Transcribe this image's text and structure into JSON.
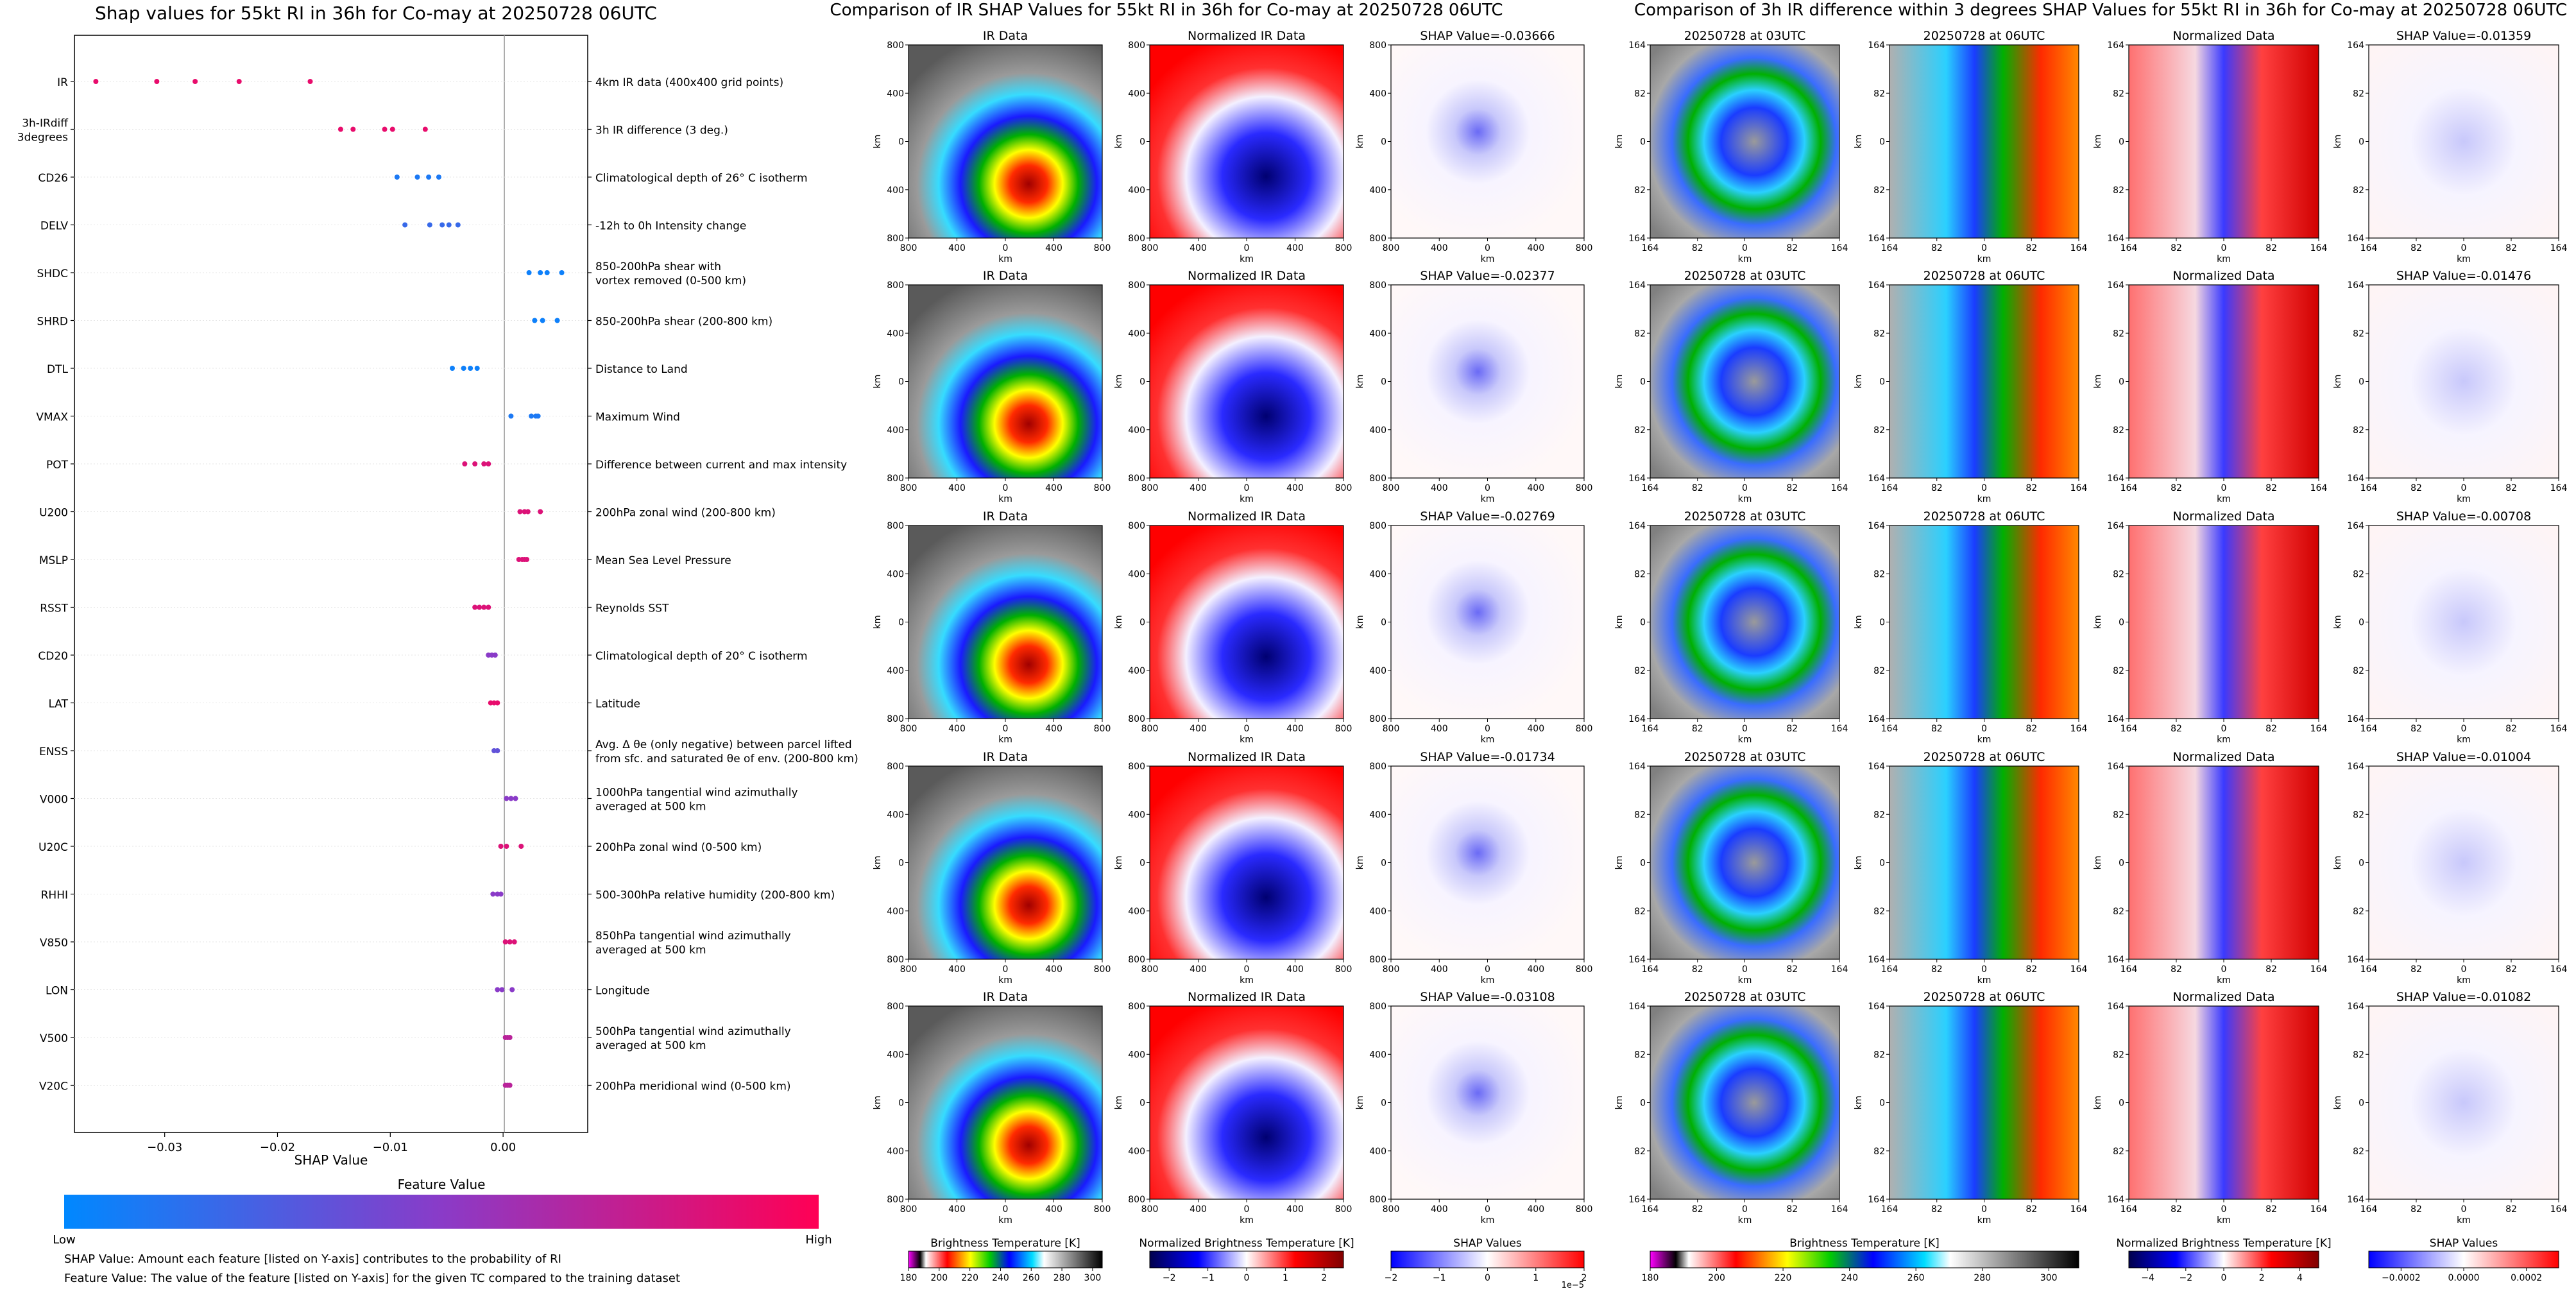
{
  "beeswarm": {
    "title": "Shap values for 55kt RI in 36h for Co-may at 20250728 06UTC",
    "xlabel": "SHAP Value",
    "xticks": [
      -0.03,
      -0.02,
      -0.01,
      0.0
    ],
    "xtick_labels": [
      "−0.03",
      "−0.02",
      "−0.01",
      "0.00"
    ],
    "xlim": [
      -0.038,
      0.0075
    ],
    "colorbar_title": "Feature Value",
    "colorbar_low": "Low",
    "colorbar_high": "High",
    "colorbar_colors": [
      "#0088ff",
      "#8a3bc8",
      "#ff0055"
    ],
    "notes": [
      "SHAP Value: Amount each feature [listed on Y-axis] contributes to the probability of RI",
      "Feature Value: The value of the feature [listed on Y-axis] for the given TC compared to the training dataset"
    ]
  },
  "chart_data": {
    "type": "scatter",
    "title": "Shap values for 55kt RI in 36h for Co-may at 20250728 06UTC",
    "xlabel": "SHAP Value",
    "xlim": [
      -0.038,
      0.0075
    ],
    "features": [
      {
        "label": "IR",
        "desc": "4km IR data (400x400 grid points)",
        "values": [
          -0.0361,
          -0.0307,
          -0.0273,
          -0.0234,
          -0.0171
        ],
        "feature_levels": [
          0.9,
          0.9,
          0.9,
          0.9,
          0.9
        ]
      },
      {
        "label": "3h-IRdiff\n3degrees",
        "desc": "3h IR difference (3 deg.)",
        "values": [
          -0.0144,
          -0.0133,
          -0.0105,
          -0.0098,
          -0.0069
        ],
        "feature_levels": [
          0.9,
          0.9,
          0.9,
          0.9,
          0.9
        ]
      },
      {
        "label": "CD26",
        "desc": "Climatological depth of 26° C isotherm",
        "values": [
          -0.0094,
          -0.0076,
          -0.0066,
          -0.0057
        ],
        "feature_levels": [
          0.1,
          0.1,
          0.1,
          0.1
        ]
      },
      {
        "label": "DELV",
        "desc": "-12h to 0h Intensity change",
        "values": [
          -0.0087,
          -0.0065,
          -0.0054,
          -0.0048,
          -0.004
        ],
        "feature_levels": [
          0.2,
          0.2,
          0.2,
          0.2,
          0.2
        ]
      },
      {
        "label": "SHDC",
        "desc": "850-200hPa shear with\nvortex removed (0-500 km)",
        "values": [
          0.0023,
          0.0033,
          0.0039,
          0.0052
        ],
        "feature_levels": [
          0.05,
          0.05,
          0.05,
          0.05
        ]
      },
      {
        "label": "SHRD",
        "desc": "850-200hPa shear (200-800 km)",
        "values": [
          0.0028,
          0.0035,
          0.0048
        ],
        "feature_levels": [
          0.05,
          0.05,
          0.05
        ]
      },
      {
        "label": "DTL",
        "desc": "Distance to Land",
        "values": [
          -0.0045,
          -0.0035,
          -0.0029,
          -0.0023
        ],
        "feature_levels": [
          0.05,
          0.05,
          0.05,
          0.05
        ]
      },
      {
        "label": "VMAX",
        "desc": "Maximum Wind",
        "values": [
          0.0007,
          0.0025,
          0.0029,
          0.0031
        ],
        "feature_levels": [
          0.1,
          0.1,
          0.1,
          0.1
        ]
      },
      {
        "label": "POT",
        "desc": "Difference between current and max intensity",
        "values": [
          -0.0034,
          -0.0025,
          -0.0017,
          -0.0013
        ],
        "feature_levels": [
          0.85,
          0.85,
          0.85,
          0.85
        ]
      },
      {
        "label": "U200",
        "desc": "200hPa zonal wind (200-800 km)",
        "values": [
          0.0015,
          0.0019,
          0.0022,
          0.0033
        ],
        "feature_levels": [
          0.85,
          0.85,
          0.85,
          0.85
        ]
      },
      {
        "label": "MSLP",
        "desc": "Mean Sea Level Pressure",
        "values": [
          0.0014,
          0.0017,
          0.0019,
          0.0021
        ],
        "feature_levels": [
          0.85,
          0.85,
          0.85,
          0.85
        ]
      },
      {
        "label": "RSST",
        "desc": "Reynolds SST",
        "values": [
          -0.0025,
          -0.0021,
          -0.0017,
          -0.0013
        ],
        "feature_levels": [
          0.85,
          0.85,
          0.85,
          0.85
        ]
      },
      {
        "label": "CD20",
        "desc": "Climatological depth of 20° C isotherm",
        "values": [
          -0.0013,
          -0.001,
          -0.0007
        ],
        "feature_levels": [
          0.5,
          0.5,
          0.5
        ]
      },
      {
        "label": "LAT",
        "desc": "Latitude",
        "values": [
          -0.0011,
          -0.0008,
          -0.0005
        ],
        "feature_levels": [
          0.9,
          0.9,
          0.9
        ]
      },
      {
        "label": "ENSS",
        "desc": "Avg. Δ θe (only negative) between parcel lifted\nfrom sfc. and saturated θe of env. (200-800 km)",
        "values": [
          -0.0008,
          -0.0005
        ],
        "feature_levels": [
          0.35,
          0.35
        ]
      },
      {
        "label": "V000",
        "desc": "1000hPa tangential wind azimuthally\naveraged at 500 km",
        "values": [
          0.0003,
          0.0007,
          0.0011
        ],
        "feature_levels": [
          0.5,
          0.5,
          0.5
        ]
      },
      {
        "label": "U20C",
        "desc": "200hPa zonal wind (0-500 km)",
        "values": [
          -0.0002,
          0.0003,
          0.0016
        ],
        "feature_levels": [
          0.85,
          0.85,
          0.85
        ]
      },
      {
        "label": "RHHI",
        "desc": "500-300hPa relative humidity (200-800 km)",
        "values": [
          -0.0009,
          -0.0005,
          -0.0002
        ],
        "feature_levels": [
          0.5,
          0.5,
          0.5
        ]
      },
      {
        "label": "V850",
        "desc": "850hPa tangential wind azimuthally\naveraged at 500 km",
        "values": [
          0.0002,
          0.0006,
          0.001
        ],
        "feature_levels": [
          0.85,
          0.85,
          0.85
        ]
      },
      {
        "label": "LON",
        "desc": "Longitude",
        "values": [
          -0.0005,
          -0.0001,
          0.0008
        ],
        "feature_levels": [
          0.5,
          0.5,
          0.5
        ]
      },
      {
        "label": "V500",
        "desc": "500hPa tangential wind azimuthally\naveraged at 500 km",
        "values": [
          0.0002,
          0.0004,
          0.0006
        ],
        "feature_levels": [
          0.7,
          0.7,
          0.7
        ]
      },
      {
        "label": "V20C",
        "desc": "200hPa meridional wind (0-500 km)",
        "values": [
          0.0002,
          0.0004,
          0.0006
        ],
        "feature_levels": [
          0.7,
          0.7,
          0.7
        ]
      }
    ]
  },
  "ir_panel": {
    "title": "Comparison of IR SHAP Values for 55kt RI in 36h for Co-may at 20250728 06UTC",
    "column_titles": [
      "IR Data",
      "Normalized IR Data"
    ],
    "shap_titles": [
      "SHAP Value=-0.03666",
      "SHAP Value=-0.02377",
      "SHAP Value=-0.02769",
      "SHAP Value=-0.01734",
      "SHAP Value=-0.03108"
    ],
    "axis_label": "km",
    "tick_labels": [
      "800",
      "400",
      "0",
      "400",
      "800"
    ],
    "colorbars": [
      {
        "label": "Brightness Temperature [K]",
        "ticks": [
          "180",
          "200",
          "220",
          "240",
          "260",
          "280",
          "300"
        ]
      },
      {
        "label": "Normalized Brightness Temperature [K]",
        "ticks": [
          "−2",
          "−1",
          "0",
          "1",
          "2"
        ]
      },
      {
        "label": "SHAP Values",
        "ticks": [
          "−2",
          "−1",
          "0",
          "1",
          "2"
        ],
        "offset": "1e−5"
      }
    ]
  },
  "diff_panel": {
    "title": "Comparison of 3h IR difference within 3 degrees SHAP Values for 55kt RI in 36h for Co-may at 20250728 06UTC",
    "column_titles": [
      "20250728 at 03UTC",
      "20250728 at 06UTC",
      "Normalized Data"
    ],
    "shap_titles": [
      "SHAP Value=-0.01359",
      "SHAP Value=-0.01476",
      "SHAP Value=-0.00708",
      "SHAP Value=-0.01004",
      "SHAP Value=-0.01082"
    ],
    "axis_label": "km",
    "tick_labels": [
      "164",
      "82",
      "0",
      "82",
      "164"
    ],
    "colorbars": [
      {
        "label": "Brightness Temperature [K]",
        "ticks": [
          "180",
          "200",
          "220",
          "240",
          "260",
          "280",
          "300"
        ]
      },
      {
        "label": "Normalized Brightness Temperature [K]",
        "ticks": [
          "−4",
          "−2",
          "0",
          "2",
          "4"
        ]
      },
      {
        "label": "SHAP Values",
        "ticks": [
          "−0.0002",
          "0.0000",
          "0.0002"
        ]
      }
    ]
  }
}
